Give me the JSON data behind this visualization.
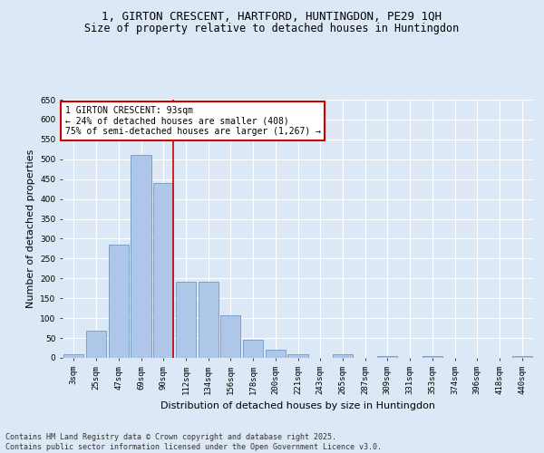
{
  "title_line1": "1, GIRTON CRESCENT, HARTFORD, HUNTINGDON, PE29 1QH",
  "title_line2": "Size of property relative to detached houses in Huntingdon",
  "xlabel": "Distribution of detached houses by size in Huntingdon",
  "ylabel": "Number of detached properties",
  "categories": [
    "3sqm",
    "25sqm",
    "47sqm",
    "69sqm",
    "90sqm",
    "112sqm",
    "134sqm",
    "156sqm",
    "178sqm",
    "200sqm",
    "221sqm",
    "243sqm",
    "265sqm",
    "287sqm",
    "309sqm",
    "331sqm",
    "353sqm",
    "374sqm",
    "396sqm",
    "418sqm",
    "440sqm"
  ],
  "values": [
    10,
    68,
    285,
    512,
    440,
    192,
    192,
    107,
    46,
    21,
    8,
    0,
    8,
    0,
    5,
    0,
    4,
    0,
    0,
    0,
    5
  ],
  "bar_color": "#aec6e8",
  "bar_edge_color": "#5c8fc0",
  "vline_color": "#cc0000",
  "annotation_text": "1 GIRTON CRESCENT: 93sqm\n← 24% of detached houses are smaller (408)\n75% of semi-detached houses are larger (1,267) →",
  "annotation_box_color": "#ffffff",
  "annotation_box_edge": "#cc0000",
  "ylim": [
    0,
    650
  ],
  "yticks": [
    0,
    50,
    100,
    150,
    200,
    250,
    300,
    350,
    400,
    450,
    500,
    550,
    600,
    650
  ],
  "footnote": "Contains HM Land Registry data © Crown copyright and database right 2025.\nContains public sector information licensed under the Open Government Licence v3.0.",
  "background_color": "#dce8f5",
  "plot_bg_color": "#dce8f5",
  "grid_color": "#ffffff",
  "title_fontsize": 9,
  "subtitle_fontsize": 8.5,
  "axis_label_fontsize": 8,
  "tick_fontsize": 6.5,
  "annotation_fontsize": 7,
  "footnote_fontsize": 6
}
